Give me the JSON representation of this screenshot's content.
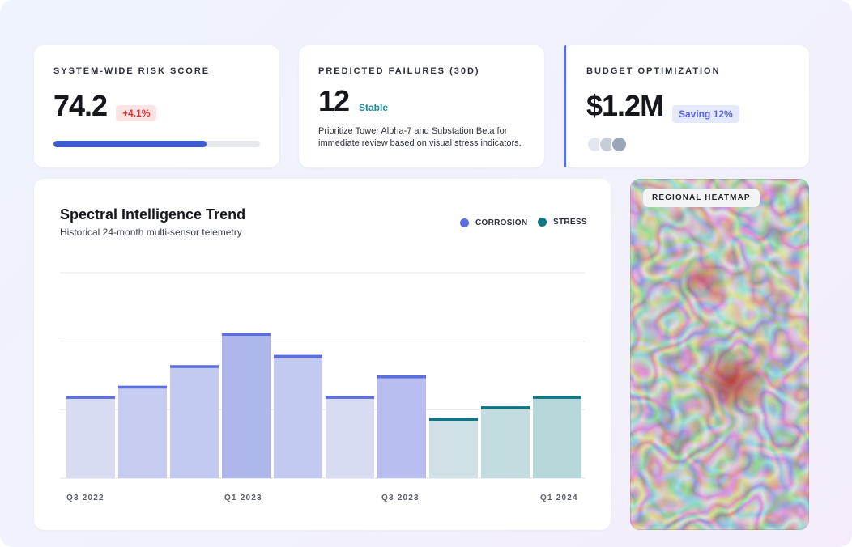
{
  "kpis": {
    "risk": {
      "label": "SYSTEM-WIDE RISK SCORE",
      "value": "74.2",
      "delta": "+4.1%",
      "progress": 0.74
    },
    "failures": {
      "label": "PREDICTED FAILURES (30D)",
      "value": "12",
      "status": "Stable",
      "note": "Prioritize Tower Alpha-7 and Substation Beta for immediate review based on visual stress indicators."
    },
    "budget": {
      "label": "BUDGET OPTIMIZATION",
      "value": "$1.2M",
      "saving": "Saving 12%"
    }
  },
  "chart": {
    "title": "Spectral Intelligence Trend",
    "subtitle": "Historical 24-month multi-sensor telemetry",
    "legend": [
      {
        "label": "CORROSION",
        "color": "#5b6ee0"
      },
      {
        "label": "STRESS",
        "color": "#0e7584"
      }
    ],
    "x_ticks": [
      "Q3 2022",
      "Q1 2023",
      "Q3 2023",
      "Q1 2024"
    ]
  },
  "chart_data": {
    "type": "bar",
    "title": "Spectral Intelligence Trend",
    "subtitle": "Historical 24-month multi-sensor telemetry",
    "ylim": [
      0,
      3
    ],
    "grid": true,
    "legend_position": "top-right",
    "series": [
      {
        "name": "CORROSION",
        "color": "#5b6ee0",
        "bars": [
          0,
          1,
          2,
          3,
          4,
          5,
          6
        ]
      },
      {
        "name": "STRESS",
        "color": "#0e7584",
        "bars": [
          7,
          8,
          9
        ]
      }
    ],
    "values": [
      1.2,
      1.35,
      1.65,
      2.12,
      1.8,
      1.2,
      1.5,
      0.88,
      1.05,
      1.2
    ],
    "fills": [
      "#d7dcf2",
      "#c7cdf0",
      "#c3caf0",
      "#aeb7e9",
      "#c3caf0",
      "#d7dcf2",
      "#b8bff0",
      "#cfe1e5",
      "#c3dcdf",
      "#b6d7da"
    ],
    "x_ticks": [
      "Q3 2022",
      "Q1 2023",
      "Q3 2023",
      "Q1 2024"
    ]
  },
  "heatmap": {
    "label": "REGIONAL HEATMAP"
  },
  "avatars": [
    "#e3e6ef",
    "#c6ccd8",
    "#9aa5b8"
  ]
}
